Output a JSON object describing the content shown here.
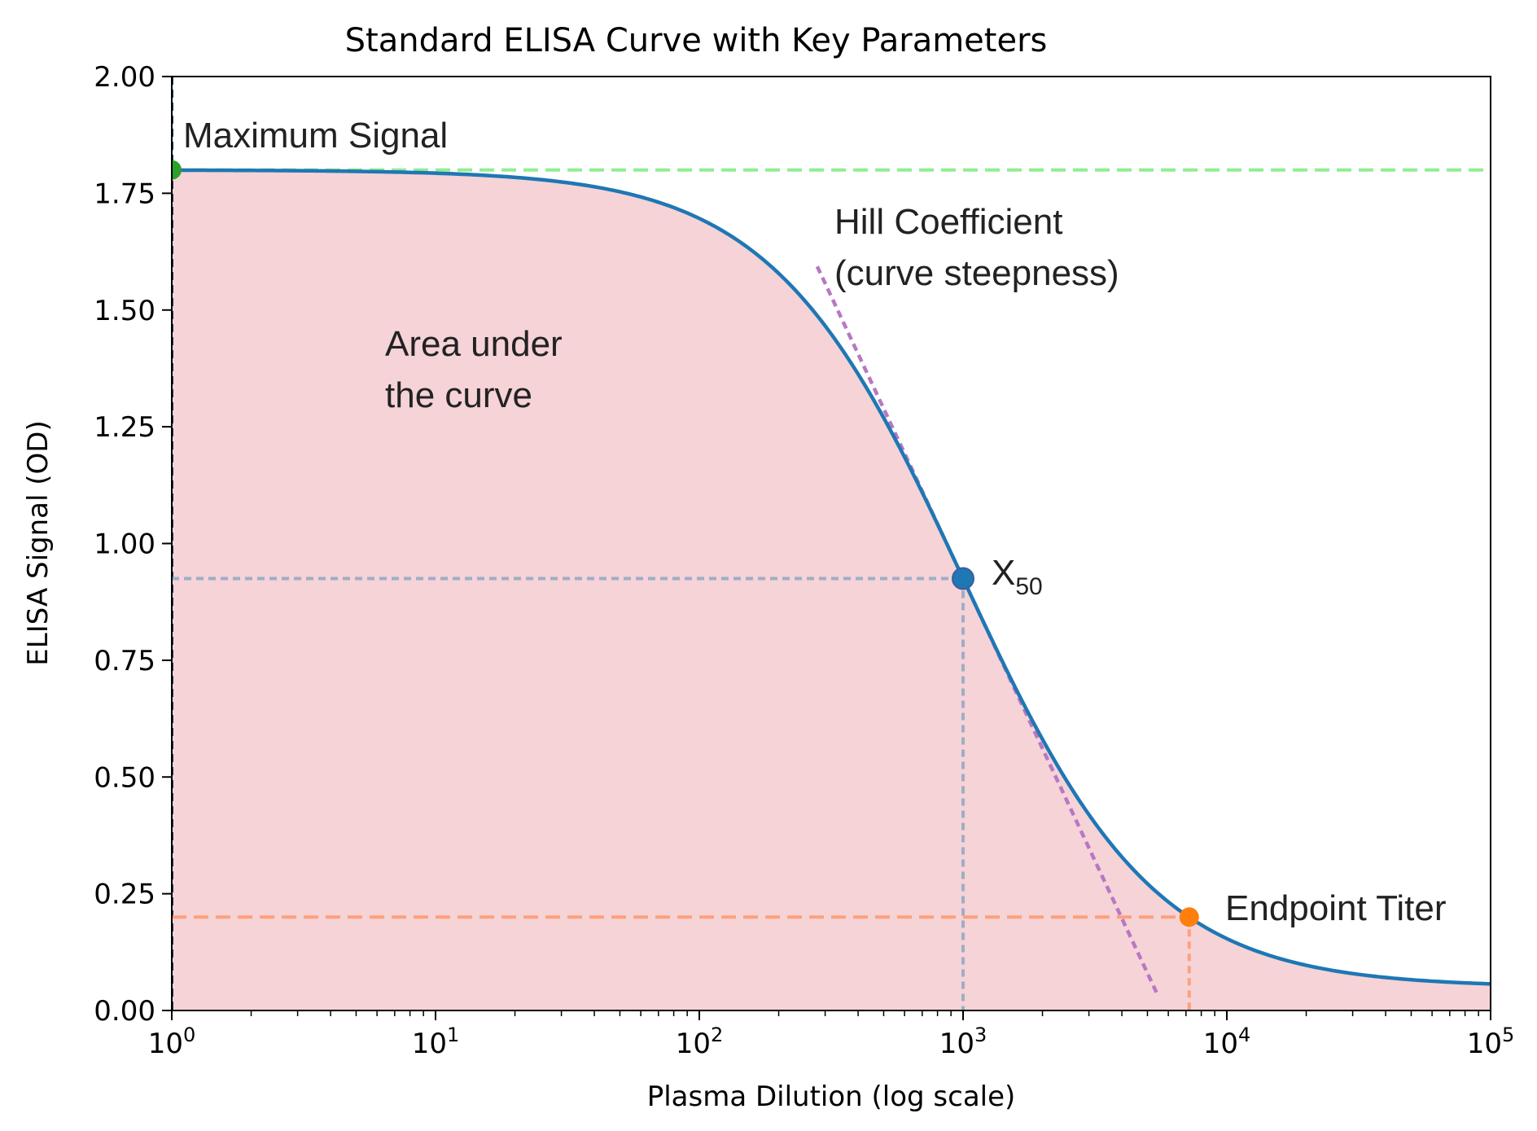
{
  "chart_data": {
    "type": "line",
    "title": "Standard ELISA Curve with Key Parameters",
    "xlabel": "Plasma Dilution (log scale)",
    "ylabel": "ELISA Signal (OD)",
    "xscale": "log",
    "xlim": [
      1,
      100000
    ],
    "ylim": [
      0,
      2
    ],
    "xticks": [
      {
        "value": 1,
        "base": "10",
        "exp": "0"
      },
      {
        "value": 10,
        "base": "10",
        "exp": "1"
      },
      {
        "value": 100,
        "base": "10",
        "exp": "2"
      },
      {
        "value": 1000,
        "base": "10",
        "exp": "3"
      },
      {
        "value": 10000,
        "base": "10",
        "exp": "4"
      },
      {
        "value": 100000,
        "base": "10",
        "exp": "5"
      }
    ],
    "yticks": [
      {
        "value": 0,
        "label": "0.00"
      },
      {
        "value": 0.25,
        "label": "0.25"
      },
      {
        "value": 0.5,
        "label": "0.50"
      },
      {
        "value": 0.75,
        "label": "0.75"
      },
      {
        "value": 1.0,
        "label": "1.00"
      },
      {
        "value": 1.25,
        "label": "1.25"
      },
      {
        "value": 1.5,
        "label": "1.50"
      },
      {
        "value": 1.75,
        "label": "1.75"
      },
      {
        "value": 2.0,
        "label": "2.00"
      }
    ],
    "grid": false,
    "curve": {
      "model": "4PL",
      "top": 1.8,
      "bottom": 0.05,
      "x50": 1000,
      "hill": 1.2,
      "color": "#1f77b4"
    },
    "fill_color": "#f5d3d7",
    "maximum_signal": {
      "x": 1,
      "y": 1.8,
      "color": "#2ca02c",
      "line_color": "#90ee90"
    },
    "x50_point": {
      "x": 1000,
      "y": 0.925,
      "color": "#1f77b4",
      "guide_color": "#9fadc4"
    },
    "endpoint_titer": {
      "x": 7200,
      "y": 0.2,
      "color": "#ff7f0e",
      "line_color": "#ffa07a"
    },
    "tangent": {
      "x_start": 280,
      "x_end": 5500,
      "color": "#b877c4"
    },
    "annotations": {
      "maximum_signal": "Maximum Signal",
      "hill_line1": "Hill Coefficient",
      "hill_line2": "(curve steepness)",
      "area_line1": "Area under",
      "area_line2": "the curve",
      "x50_main": "X",
      "x50_sub": "50",
      "endpoint_titer": "Endpoint Titer"
    }
  }
}
